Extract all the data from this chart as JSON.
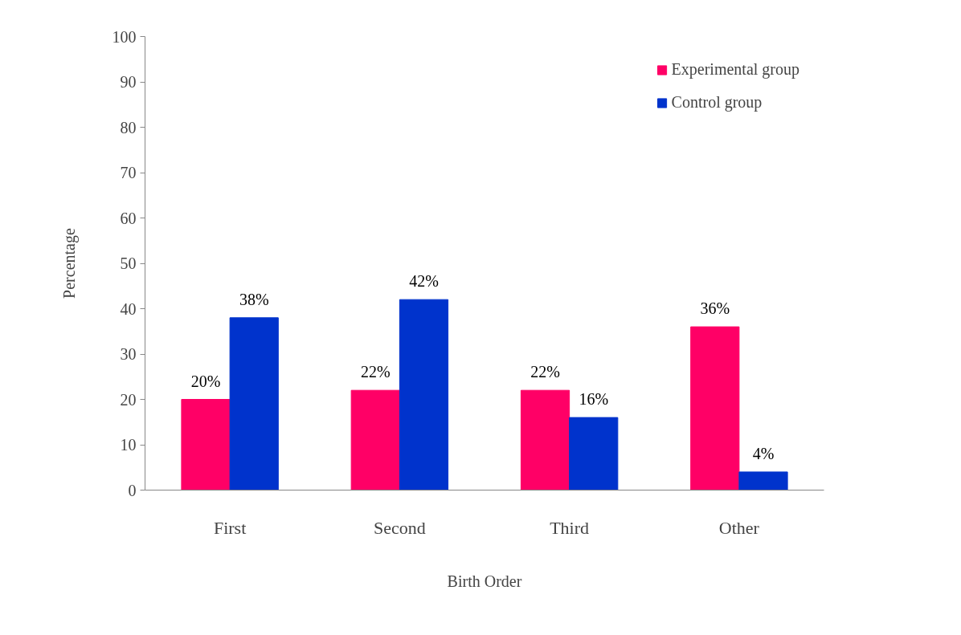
{
  "chart_data": {
    "type": "bar",
    "xlabel": "Birth Order",
    "ylabel": "Percentage",
    "categories": [
      "First",
      "Second",
      "Third",
      "Other"
    ],
    "series": [
      {
        "name": "Experimental group",
        "color": "#ff0066",
        "values": [
          20,
          22,
          22,
          36
        ],
        "value_labels": [
          "20%",
          "22%",
          "22%",
          "36%"
        ]
      },
      {
        "name": "Control group",
        "color": "#0033cc",
        "values": [
          38,
          42,
          16,
          4
        ],
        "value_labels": [
          "38%",
          "42%",
          "16%",
          "4%"
        ]
      }
    ],
    "ylim": [
      0,
      100
    ],
    "yticks": [
      0,
      10,
      20,
      30,
      40,
      50,
      60,
      70,
      80,
      90,
      100
    ],
    "grid": false,
    "legend": "top right"
  }
}
